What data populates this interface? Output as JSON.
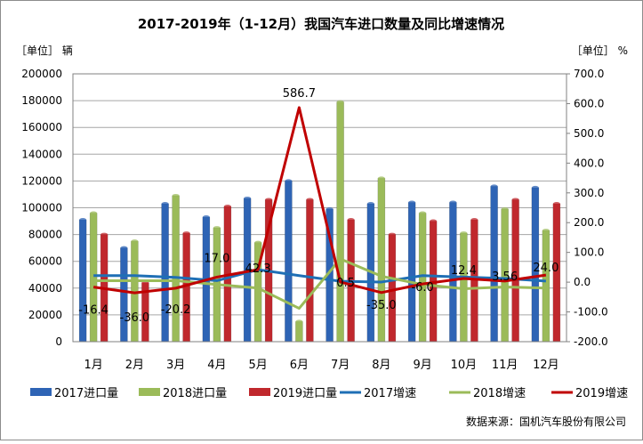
{
  "chart_data": {
    "type": "bar",
    "title": "2017-2019年（1-12月）我国汽车进口数量及同比增速情况",
    "y_left_unit": "［单位］ 辆",
    "y_right_unit": "［单位］ %",
    "source_note": "数据来源：国机汽车股份有限公司",
    "categories": [
      "1月",
      "2月",
      "3月",
      "4月",
      "5月",
      "6月",
      "7月",
      "8月",
      "9月",
      "10月",
      "11月",
      "12月"
    ],
    "y_left": {
      "min": 0,
      "max": 200000,
      "step": 20000,
      "ticks": [
        "0",
        "20000",
        "40000",
        "60000",
        "80000",
        "100000",
        "120000",
        "140000",
        "160000",
        "180000",
        "200000"
      ]
    },
    "y_right": {
      "min": -200,
      "max": 700,
      "step": 100,
      "ticks": [
        "-200.0",
        "-100.0",
        "0.0",
        "100.0",
        "200.0",
        "300.0",
        "400.0",
        "500.0",
        "600.0",
        "700.0"
      ]
    },
    "bar_series": [
      {
        "name": "2017进口量",
        "color": "#2e64b5",
        "values": [
          91000,
          70000,
          103000,
          93000,
          107000,
          120000,
          99000,
          103000,
          104000,
          104000,
          116000,
          115000
        ]
      },
      {
        "name": "2018进口量",
        "color": "#9bbb59",
        "values": [
          96000,
          75000,
          109000,
          85000,
          74000,
          15000,
          179000,
          122000,
          96000,
          81000,
          99000,
          83000
        ]
      },
      {
        "name": "2019进口量",
        "color": "#c0282d",
        "values": [
          80000,
          44000,
          81000,
          101000,
          106000,
          106000,
          91000,
          80000,
          90000,
          91000,
          106000,
          103000
        ]
      }
    ],
    "line_series": [
      {
        "name": "2017增速",
        "color": "#1f6fb5",
        "values": [
          22,
          22,
          16,
          5,
          42,
          22,
          3,
          0.5,
          22,
          17,
          12.4,
          3.56
        ]
      },
      {
        "name": "2018增速",
        "color": "#9bbb59",
        "values": [
          5,
          5,
          5,
          -8,
          -20,
          -88,
          78,
          20,
          -8,
          -22,
          -16,
          -20
        ]
      },
      {
        "name": "2019增速",
        "color": "#c00000",
        "values": [
          -16.4,
          -36.0,
          -20.2,
          17.0,
          42.3,
          586.7,
          0.5,
          -35.0,
          -6.0,
          12.4,
          3.56,
          24.0
        ]
      }
    ],
    "data_labels": [
      "-16.4",
      "-36.0",
      "-20.2",
      "17.0",
      "42.3",
      "586.7",
      "0.5",
      "-35.0",
      "-6.0",
      "12.4",
      "3.56",
      "24.0"
    ],
    "grid": true,
    "legend_position": "bottom"
  }
}
